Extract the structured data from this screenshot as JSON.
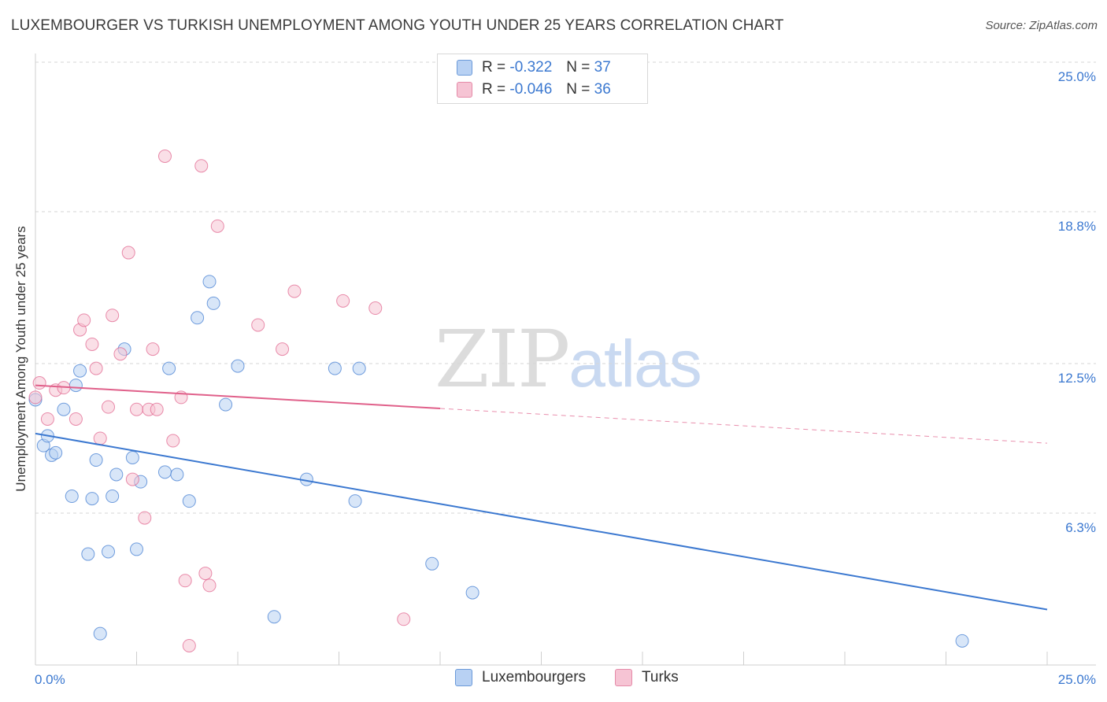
{
  "chart_data": {
    "type": "scatter",
    "title": "LUXEMBOURGER VS TURKISH UNEMPLOYMENT AMONG YOUTH UNDER 25 YEARS CORRELATION CHART",
    "source": "Source: ZipAtlas.com",
    "xlabel": "",
    "ylabel": "Unemployment Among Youth under 25 years",
    "xlim": [
      0,
      25
    ],
    "ylim": [
      0,
      25
    ],
    "x_tick_labels": [
      "0.0%",
      "25.0%"
    ],
    "y_ticks": [
      6.3,
      12.5,
      18.8,
      25.0
    ],
    "y_tick_labels": [
      "6.3%",
      "12.5%",
      "18.8%",
      "25.0%"
    ],
    "grid": true,
    "watermark": {
      "zip": "ZIP",
      "atlas": "atlas"
    },
    "legend": {
      "r_label": "R =",
      "n_label": "N =",
      "entries": [
        {
          "name": "Luxembourgers",
          "r": "-0.322",
          "n": "37"
        },
        {
          "name": "Turks",
          "r": "-0.046",
          "n": "36"
        }
      ]
    },
    "series": [
      {
        "name": "Luxembourgers",
        "color": "#3b78d0",
        "fill": "#b8d1f3",
        "trend": {
          "x0": 0,
          "y0": 9.6,
          "x1": 25,
          "y1": 2.3,
          "solid_until": 25
        },
        "points": [
          [
            0.0,
            11.0
          ],
          [
            0.2,
            9.1
          ],
          [
            0.3,
            9.5
          ],
          [
            0.4,
            8.7
          ],
          [
            0.5,
            8.8
          ],
          [
            0.7,
            10.6
          ],
          [
            0.9,
            7.0
          ],
          [
            1.0,
            11.6
          ],
          [
            1.1,
            12.2
          ],
          [
            1.3,
            4.6
          ],
          [
            1.4,
            6.9
          ],
          [
            1.5,
            8.5
          ],
          [
            1.6,
            1.3
          ],
          [
            1.8,
            4.7
          ],
          [
            1.9,
            7.0
          ],
          [
            2.0,
            7.9
          ],
          [
            2.2,
            13.1
          ],
          [
            2.4,
            8.6
          ],
          [
            2.5,
            4.8
          ],
          [
            2.6,
            7.6
          ],
          [
            3.2,
            8.0
          ],
          [
            3.3,
            12.3
          ],
          [
            3.5,
            7.9
          ],
          [
            3.8,
            6.8
          ],
          [
            4.0,
            14.4
          ],
          [
            4.3,
            15.9
          ],
          [
            4.4,
            15.0
          ],
          [
            4.7,
            10.8
          ],
          [
            5.0,
            12.4
          ],
          [
            5.9,
            2.0
          ],
          [
            6.7,
            7.7
          ],
          [
            7.4,
            12.3
          ],
          [
            7.9,
            6.8
          ],
          [
            8.0,
            12.3
          ],
          [
            9.8,
            4.2
          ],
          [
            10.8,
            3.0
          ],
          [
            22.9,
            1.0
          ]
        ]
      },
      {
        "name": "Turks",
        "color": "#e0608a",
        "fill": "#f6c4d4",
        "trend": {
          "x0": 0,
          "y0": 11.6,
          "x1": 25,
          "y1": 9.2,
          "solid_until": 10.0
        },
        "points": [
          [
            0.0,
            11.1
          ],
          [
            0.1,
            11.7
          ],
          [
            0.3,
            10.2
          ],
          [
            0.5,
            11.4
          ],
          [
            0.7,
            11.5
          ],
          [
            1.0,
            10.2
          ],
          [
            1.1,
            13.9
          ],
          [
            1.2,
            14.3
          ],
          [
            1.4,
            13.3
          ],
          [
            1.5,
            12.3
          ],
          [
            1.6,
            9.4
          ],
          [
            1.8,
            10.7
          ],
          [
            1.9,
            14.5
          ],
          [
            2.1,
            12.9
          ],
          [
            2.3,
            17.1
          ],
          [
            2.4,
            7.7
          ],
          [
            2.5,
            10.6
          ],
          [
            2.8,
            10.6
          ],
          [
            2.9,
            13.1
          ],
          [
            2.7,
            6.1
          ],
          [
            3.2,
            21.1
          ],
          [
            3.4,
            9.3
          ],
          [
            3.6,
            11.1
          ],
          [
            3.7,
            3.5
          ],
          [
            3.8,
            0.8
          ],
          [
            4.1,
            20.7
          ],
          [
            4.2,
            3.8
          ],
          [
            4.3,
            3.3
          ],
          [
            4.5,
            18.2
          ],
          [
            5.5,
            14.1
          ],
          [
            6.1,
            13.1
          ],
          [
            6.4,
            15.5
          ],
          [
            7.6,
            15.1
          ],
          [
            8.4,
            14.8
          ],
          [
            9.1,
            1.9
          ],
          [
            3.0,
            10.6
          ]
        ]
      }
    ]
  }
}
